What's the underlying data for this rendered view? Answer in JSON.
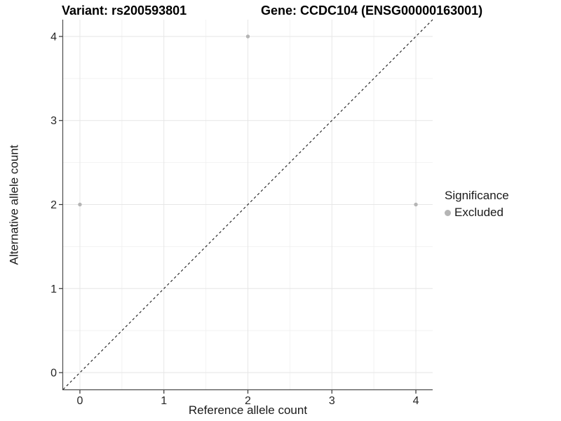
{
  "chart_data": {
    "type": "scatter",
    "titles": {
      "left": "Variant: rs200593801",
      "right": "Gene: CCDC104 (ENSG00000163001)"
    },
    "xlabel": "Reference allele count",
    "ylabel": "Alternative allele count",
    "xlim": [
      -0.2,
      4.2
    ],
    "ylim": [
      -0.2,
      4.2
    ],
    "x_ticks": [
      0,
      1,
      2,
      3,
      4
    ],
    "y_ticks": [
      0,
      1,
      2,
      3,
      4
    ],
    "x_minor_ticks": [
      0.5,
      1.5,
      2.5,
      3.5
    ],
    "y_minor_ticks": [
      0.5,
      1.5,
      2.5,
      3.5
    ],
    "grid": {
      "show": true,
      "major_color": "#e6e6e6",
      "minor_color": "#f2f2f2"
    },
    "axis_line_color": "#4d4d4d",
    "tick_mark_color": "#333333",
    "tick_label_color": "#262626",
    "reference_line": {
      "type": "identity",
      "style": "dashed",
      "color": "#1a1a1a"
    },
    "point_radius": 2.7,
    "series": [
      {
        "name": "Excluded",
        "color": "#b5b5b5",
        "points": [
          {
            "x": 0,
            "y": 2
          },
          {
            "x": 2,
            "y": 4
          },
          {
            "x": 4,
            "y": 2
          }
        ]
      }
    ],
    "legend": {
      "title": "Significance",
      "position": "right",
      "items": [
        {
          "label": "Excluded",
          "color": "#b5b5b5",
          "marker": "circle"
        }
      ]
    }
  }
}
